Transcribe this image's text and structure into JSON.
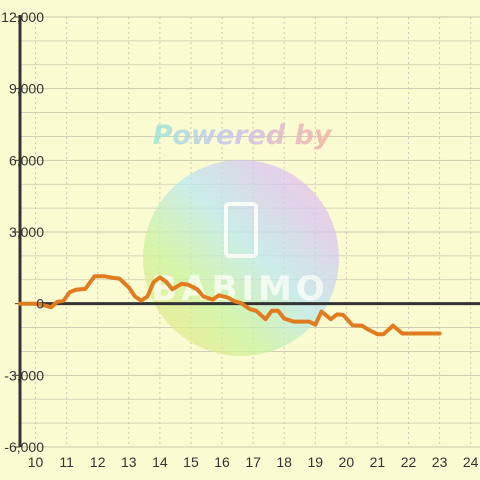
{
  "watermark": {
    "text": "Powered by",
    "brand": "BABIMO"
  },
  "chart_data": {
    "type": "line",
    "title": "",
    "xlabel": "",
    "ylabel": "",
    "xlim": [
      9.5,
      24.3
    ],
    "ylim": [
      -6000,
      12000
    ],
    "x_ticks": [
      10,
      11,
      12,
      13,
      14,
      15,
      16,
      17,
      18,
      19,
      20,
      21,
      22,
      23,
      24
    ],
    "x_tick_labels": [
      "10",
      "11",
      "12",
      "13",
      "14",
      "15",
      "16",
      "17",
      "18",
      "19",
      "20",
      "21",
      "22",
      "23",
      "24"
    ],
    "y_ticks": [
      12000,
      9000,
      6000,
      3000,
      0,
      -3000,
      -6000
    ],
    "y_tick_labels": [
      "12,000",
      "9,000",
      "6,000",
      "3,000",
      "0",
      "-3,000",
      "-6,000"
    ],
    "grid": true,
    "legend": "none",
    "colors": {
      "background": "#fbfbd2",
      "line": "#e07b1f",
      "grid": "#c9c9b4",
      "zero_line": "#333333",
      "axis": "#333333"
    },
    "series": [
      {
        "x": [
          9.5,
          10.0,
          10.3,
          10.5,
          10.7,
          10.9,
          11.1,
          11.3,
          11.6,
          11.9,
          12.2,
          12.5,
          12.7,
          13.0,
          13.2,
          13.4,
          13.6,
          13.8,
          14.0,
          14.2,
          14.4,
          14.7,
          14.9,
          15.2,
          15.4,
          15.7,
          15.9,
          16.2,
          16.4,
          16.6,
          16.9,
          17.1,
          17.4,
          17.6,
          17.8,
          18.0,
          18.3,
          18.5,
          18.8,
          19.0,
          19.2,
          19.5,
          19.7,
          19.9,
          20.2,
          20.5,
          20.7,
          21.0,
          21.2,
          21.5,
          21.8,
          22.0,
          22.2,
          22.5,
          22.8,
          23.0
        ],
        "y": [
          0,
          0,
          -80,
          -150,
          80,
          120,
          480,
          580,
          620,
          1150,
          1150,
          1080,
          1050,
          680,
          300,
          130,
          300,
          900,
          1100,
          920,
          600,
          830,
          800,
          600,
          300,
          170,
          350,
          250,
          100,
          30,
          -230,
          -300,
          -650,
          -300,
          -300,
          -620,
          -750,
          -750,
          -750,
          -880,
          -330,
          -650,
          -450,
          -470,
          -910,
          -920,
          -1080,
          -1280,
          -1280,
          -920,
          -1250,
          -1250,
          -1250,
          -1250,
          -1250,
          -1250
        ]
      }
    ]
  }
}
